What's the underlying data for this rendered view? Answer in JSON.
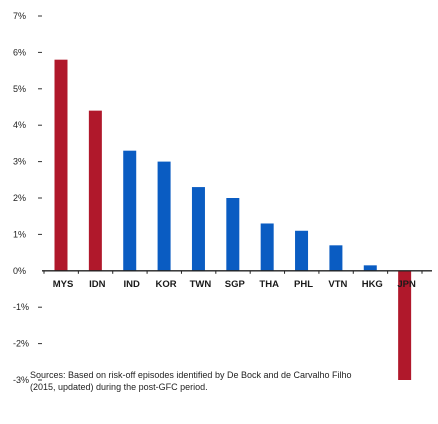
{
  "chart_data": {
    "type": "bar",
    "categories": [
      "MYS",
      "IDN",
      "IND",
      "KOR",
      "TWN",
      "SGP",
      "THA",
      "PHL",
      "VTN",
      "HKG",
      "JPN"
    ],
    "values": [
      5.8,
      4.4,
      3.3,
      3.0,
      2.3,
      2.0,
      1.3,
      1.1,
      0.7,
      0.15,
      -3.0
    ],
    "colors": [
      "#b0182b",
      "#b0182b",
      "#0a5cc2",
      "#0a5cc2",
      "#0a5cc2",
      "#0a5cc2",
      "#0a5cc2",
      "#0a5cc2",
      "#0a5cc2",
      "#0a5cc2",
      "#b0182b"
    ],
    "yticks": [
      "7%",
      "6%",
      "5%",
      "4%",
      "3%",
      "2%",
      "1%",
      "0%",
      "-1%",
      "-2%",
      "-3%"
    ],
    "ylim": [
      -3,
      7
    ],
    "title": "",
    "xlabel": "",
    "ylabel": "",
    "grid": false,
    "legend": "none"
  },
  "footer": {
    "source_line1": "Sources: Based on risk-off episodes identified by De Bock and de Carvalho Filho",
    "source_line2": "(2015, updated) during the post-GFC period."
  }
}
